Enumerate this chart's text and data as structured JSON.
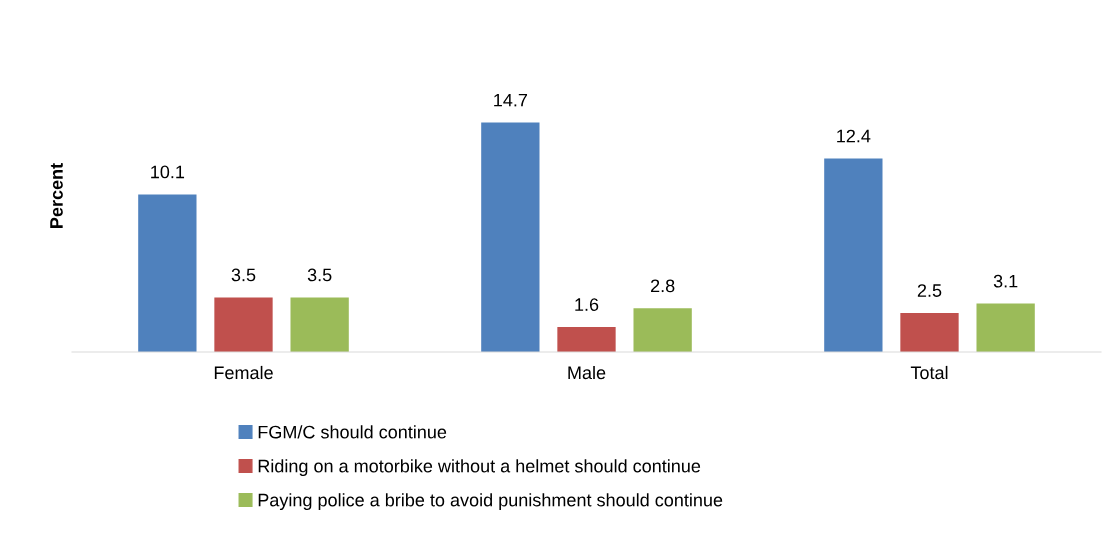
{
  "chart_data": {
    "type": "bar",
    "ylabel": "Percent",
    "categories": [
      "Female",
      "Male",
      "Total"
    ],
    "series": [
      {
        "name": "FGM/C should continue",
        "color": "#4f81bd",
        "values": [
          10.1,
          14.7,
          12.4
        ]
      },
      {
        "name": "Riding on a motorbike without a helmet should continue",
        "color": "#c0504d",
        "values": [
          3.5,
          1.6,
          2.5
        ]
      },
      {
        "name": "Paying police a bribe to avoid punishment should continue",
        "color": "#9bbb59",
        "values": [
          3.5,
          2.8,
          3.1
        ]
      }
    ],
    "data_labels": true,
    "legend": "bottom",
    "grid": false
  }
}
